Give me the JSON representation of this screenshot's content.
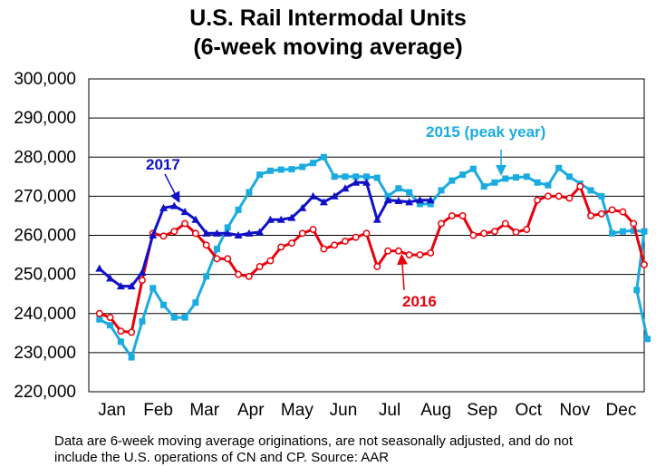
{
  "chart_data": {
    "type": "line",
    "title": "U.S. Rail Intermodal Units",
    "subtitle": "(6-week moving average)",
    "xlabel": "",
    "ylabel": "",
    "ylim": [
      220000,
      300000
    ],
    "yticks": [
      220000,
      230000,
      240000,
      250000,
      260000,
      270000,
      280000,
      290000,
      300000
    ],
    "ytick_labels": [
      "220,000",
      "230,000",
      "240,000",
      "250,000",
      "260,000",
      "270,000",
      "280,000",
      "290,000",
      "300,000"
    ],
    "categories": [
      "Jan",
      "Feb",
      "Mar",
      "Apr",
      "May",
      "Jun",
      "Jul",
      "Aug",
      "Sep",
      "Oct",
      "Nov",
      "Dec"
    ],
    "x_unit": "week",
    "xlim": [
      0,
      52
    ],
    "grid": true,
    "series": [
      {
        "name": "2015 (peak year)",
        "label": "2015 (peak year)",
        "color": "#1aabe0",
        "marker": "square",
        "x": [
          1,
          2,
          3,
          4,
          5,
          6,
          7,
          8,
          9,
          10,
          11,
          12,
          13,
          14,
          15,
          16,
          17,
          18,
          19,
          20,
          21,
          22,
          23,
          24,
          25,
          26,
          27,
          28,
          29,
          30,
          31,
          32,
          33,
          34,
          35,
          36,
          37,
          38,
          39,
          40,
          41,
          42,
          43,
          44,
          45,
          46,
          47,
          48,
          49,
          50,
          51,
          52
        ],
        "values": [
          238500,
          237000,
          232800,
          228800,
          238000,
          246500,
          242200,
          239000,
          239000,
          242800,
          249500,
          256500,
          262000,
          266500,
          271000,
          275500,
          276500,
          276800,
          276900,
          277500,
          278500,
          280000,
          275000,
          275000,
          275000,
          275000,
          274700,
          270000,
          272000,
          271000,
          268000,
          268000,
          271500,
          274000,
          275500,
          277000,
          272500,
          273500,
          274500,
          274800,
          275000,
          273500,
          272800,
          277200,
          275000,
          273200,
          271500,
          270000,
          260500,
          261000,
          261200,
          261000
        ],
        "extra_points": [
          [
            51.3,
            246000
          ],
          [
            52.3,
            233500
          ]
        ]
      },
      {
        "name": "2016",
        "label": "2016",
        "color": "#e8000b",
        "marker": "circle-open",
        "x": [
          1,
          2,
          3,
          4,
          5,
          6,
          7,
          8,
          9,
          10,
          11,
          12,
          13,
          14,
          15,
          16,
          17,
          18,
          19,
          20,
          21,
          22,
          23,
          24,
          25,
          26,
          27,
          28,
          29,
          30,
          31,
          32,
          33,
          34,
          35,
          36,
          37,
          38,
          39,
          40,
          41,
          42,
          43,
          44,
          45,
          46,
          47,
          48,
          49,
          50,
          51,
          52
        ],
        "values": [
          240000,
          239000,
          235500,
          235200,
          248500,
          260500,
          259800,
          261000,
          263000,
          260500,
          257500,
          254000,
          254000,
          250000,
          249500,
          252000,
          253500,
          257000,
          258000,
          260500,
          261500,
          256500,
          257500,
          258500,
          259500,
          260500,
          252000,
          256000,
          256000,
          255000,
          255000,
          255500,
          263000,
          265000,
          265000,
          260000,
          260500,
          261000,
          263000,
          260800,
          261500,
          269000,
          270000,
          270000,
          269500,
          272500,
          265000,
          265500,
          266500,
          266000,
          263000,
          252500
        ]
      },
      {
        "name": "2017",
        "label": "2017",
        "color": "#1010c8",
        "marker": "triangle",
        "x": [
          1,
          2,
          3,
          4,
          5,
          6,
          7,
          8,
          9,
          10,
          11,
          12,
          13,
          14,
          15,
          16,
          17,
          18,
          19,
          20,
          21,
          22,
          23,
          24,
          25,
          26,
          27,
          28,
          29,
          30,
          31,
          32
        ],
        "values": [
          251500,
          249000,
          247000,
          247000,
          250500,
          260000,
          267000,
          267500,
          266000,
          264000,
          260500,
          260500,
          260500,
          260000,
          260500,
          260800,
          264000,
          264000,
          264500,
          267000,
          270000,
          268500,
          270000,
          272000,
          273500,
          273500,
          264000,
          269000,
          268800,
          268500,
          269000,
          269000
        ]
      }
    ],
    "annotations": [
      {
        "text": "2017",
        "series": "2017"
      },
      {
        "text": "2015 (peak year)",
        "series": "2015 (peak year)"
      },
      {
        "text": "2016",
        "series": "2016"
      }
    ],
    "footnote": [
      "Data are 6-week moving average originations, are not seasonally adjusted, and do not",
      "include the U.S. operations of CN and CP.   Source: AAR"
    ]
  },
  "colors": {
    "plot_background": "#ffffff",
    "grid": "#000000",
    "axis": "#000000"
  }
}
